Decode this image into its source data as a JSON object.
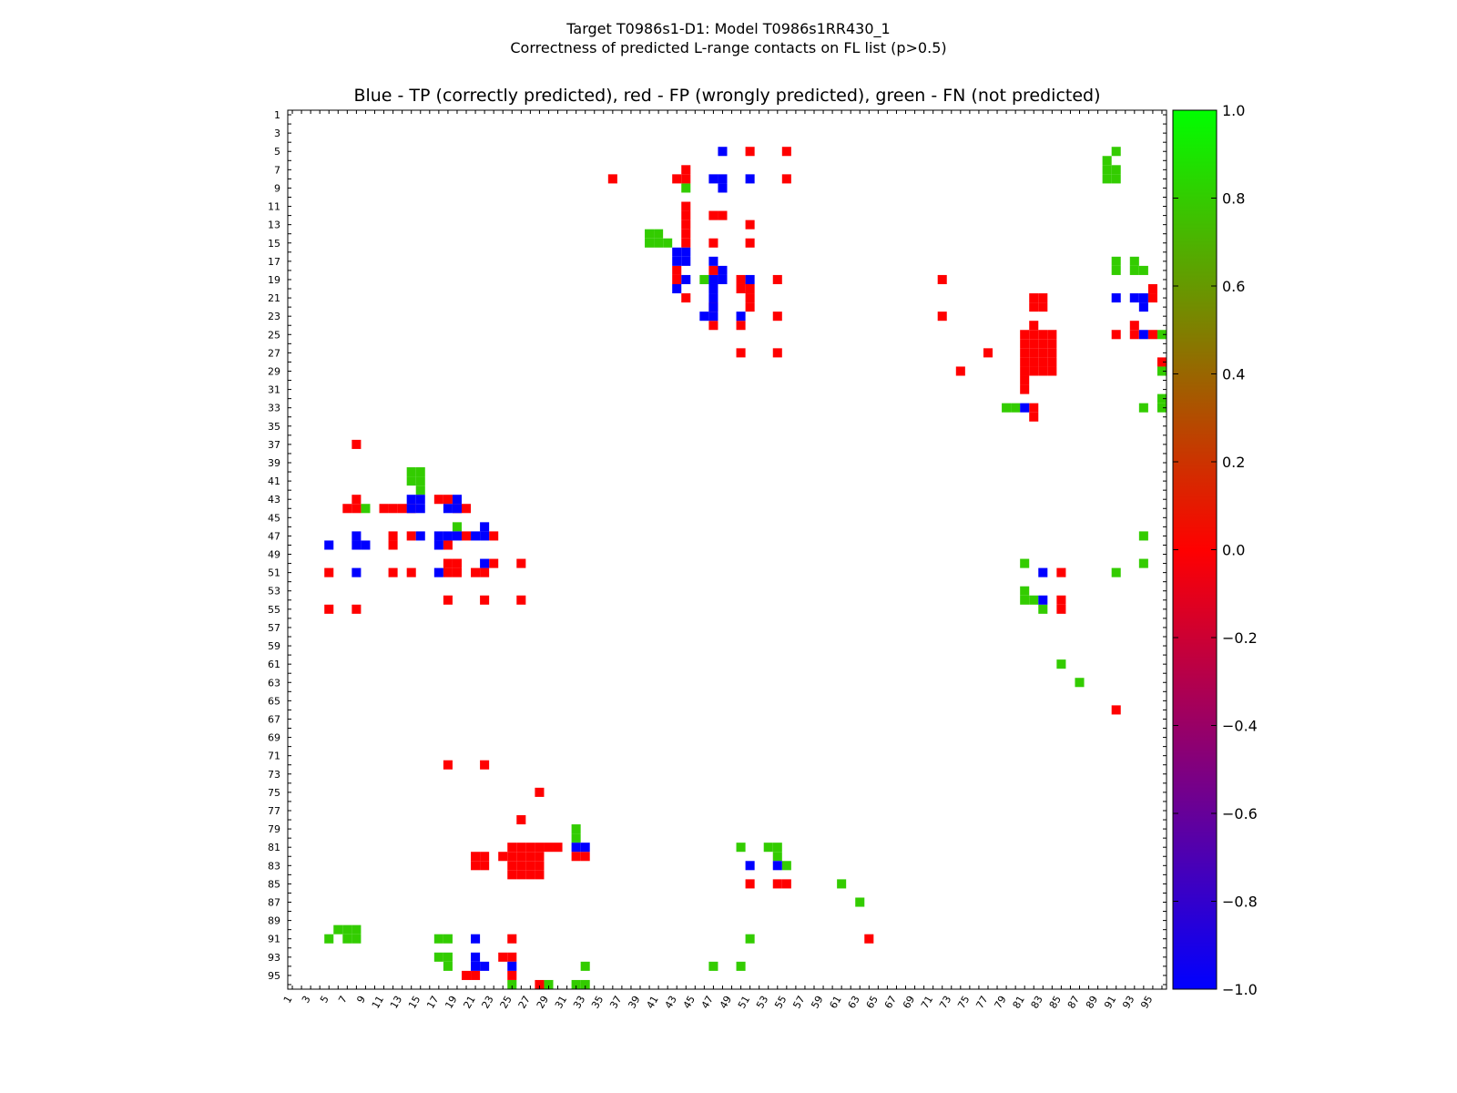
{
  "figure": {
    "title_line1": "Target T0986s1-D1: Model T0986s1RR430_1",
    "title_line2": "Correctness of predicted L-range contacts on FL list (p>0.5)"
  },
  "chart_data": {
    "type": "heatmap",
    "title": "Blue - TP (correctly predicted), red - FP (wrongly predicted), green - FN (not predicted)",
    "n": 96,
    "x_ticks": [
      1,
      3,
      5,
      7,
      9,
      11,
      13,
      15,
      17,
      19,
      21,
      23,
      25,
      27,
      29,
      31,
      33,
      35,
      37,
      39,
      41,
      43,
      45,
      47,
      49,
      51,
      53,
      55,
      57,
      59,
      61,
      63,
      65,
      67,
      69,
      71,
      73,
      75,
      77,
      79,
      81,
      83,
      85,
      87,
      89,
      91,
      93,
      95
    ],
    "y_ticks": [
      1,
      3,
      5,
      7,
      9,
      11,
      13,
      15,
      17,
      19,
      21,
      23,
      25,
      27,
      29,
      31,
      33,
      35,
      37,
      39,
      41,
      43,
      45,
      47,
      49,
      51,
      53,
      55,
      57,
      59,
      61,
      63,
      65,
      67,
      69,
      71,
      73,
      75,
      77,
      79,
      81,
      83,
      85,
      87,
      89,
      91,
      93,
      95
    ],
    "colorbar": {
      "range": [
        -1.0,
        1.0
      ],
      "ticks": [
        "1.0",
        "0.8",
        "0.6",
        "0.4",
        "0.2",
        "0.0",
        "−0.2",
        "−0.4",
        "−0.6",
        "−0.8",
        "−1.0"
      ],
      "colors": [
        "#0000ff",
        "#ff0000",
        "#00ff00"
      ]
    },
    "legend": {
      "tp": "#0000ff",
      "fp": "#ff0000",
      "fn": "#33cc00"
    },
    "cells": {
      "tp": [
        [
          48,
          5
        ],
        [
          47,
          8
        ],
        [
          48,
          8
        ],
        [
          51,
          8
        ],
        [
          48,
          9
        ],
        [
          43,
          16
        ],
        [
          44,
          16
        ],
        [
          43,
          17
        ],
        [
          44,
          17
        ],
        [
          47,
          17
        ],
        [
          48,
          18
        ],
        [
          51,
          19
        ],
        [
          43,
          20
        ],
        [
          44,
          19
        ],
        [
          47,
          19
        ],
        [
          48,
          19
        ],
        [
          47,
          20
        ],
        [
          47,
          21
        ],
        [
          47,
          22
        ],
        [
          46,
          23
        ],
        [
          47,
          23
        ],
        [
          50,
          23
        ],
        [
          14,
          43
        ],
        [
          15,
          43
        ],
        [
          14,
          44
        ],
        [
          15,
          44
        ],
        [
          19,
          43
        ],
        [
          18,
          44
        ],
        [
          19,
          44
        ],
        [
          8,
          47
        ],
        [
          15,
          47
        ],
        [
          17,
          47
        ],
        [
          18,
          47
        ],
        [
          19,
          47
        ],
        [
          21,
          47
        ],
        [
          22,
          47
        ],
        [
          22,
          46
        ],
        [
          5,
          48
        ],
        [
          8,
          48
        ],
        [
          9,
          48
        ],
        [
          17,
          48
        ],
        [
          22,
          50
        ],
        [
          8,
          51
        ],
        [
          17,
          51
        ],
        [
          81,
          33
        ],
        [
          91,
          21
        ],
        [
          93,
          21
        ],
        [
          94,
          21
        ],
        [
          94,
          22
        ],
        [
          94,
          25
        ],
        [
          83,
          51
        ],
        [
          83,
          54
        ],
        [
          32,
          81
        ],
        [
          33,
          81
        ],
        [
          51,
          83
        ],
        [
          54,
          83
        ],
        [
          21,
          91
        ],
        [
          21,
          93
        ],
        [
          21,
          94
        ],
        [
          22,
          94
        ],
        [
          25,
          94
        ]
      ],
      "fp": [
        [
          51,
          5
        ],
        [
          55,
          5
        ],
        [
          36,
          8
        ],
        [
          43,
          8
        ],
        [
          44,
          8
        ],
        [
          44,
          7
        ],
        [
          55,
          8
        ],
        [
          44,
          11
        ],
        [
          44,
          12
        ],
        [
          44,
          13
        ],
        [
          44,
          14
        ],
        [
          44,
          15
        ],
        [
          47,
          12
        ],
        [
          48,
          12
        ],
        [
          51,
          13
        ],
        [
          47,
          15
        ],
        [
          51,
          15
        ],
        [
          47,
          18
        ],
        [
          43,
          18
        ],
        [
          43,
          19
        ],
        [
          47,
          22
        ],
        [
          50,
          19
        ],
        [
          50,
          20
        ],
        [
          51,
          20
        ],
        [
          54,
          19
        ],
        [
          44,
          21
        ],
        [
          51,
          21
        ],
        [
          51,
          22
        ],
        [
          54,
          23
        ],
        [
          47,
          24
        ],
        [
          50,
          24
        ],
        [
          50,
          27
        ],
        [
          54,
          27
        ],
        [
          72,
          19
        ],
        [
          72,
          23
        ],
        [
          77,
          27
        ],
        [
          74,
          29
        ],
        [
          82,
          21
        ],
        [
          83,
          21
        ],
        [
          82,
          22
        ],
        [
          83,
          22
        ],
        [
          82,
          24
        ],
        [
          81,
          25
        ],
        [
          82,
          25
        ],
        [
          83,
          25
        ],
        [
          84,
          25
        ],
        [
          81,
          26
        ],
        [
          82,
          26
        ],
        [
          83,
          26
        ],
        [
          84,
          26
        ],
        [
          81,
          27
        ],
        [
          82,
          27
        ],
        [
          83,
          27
        ],
        [
          84,
          27
        ],
        [
          81,
          28
        ],
        [
          82,
          28
        ],
        [
          83,
          28
        ],
        [
          84,
          28
        ],
        [
          81,
          29
        ],
        [
          82,
          29
        ],
        [
          83,
          29
        ],
        [
          84,
          29
        ],
        [
          81,
          30
        ],
        [
          81,
          31
        ],
        [
          82,
          33
        ],
        [
          82,
          34
        ],
        [
          91,
          25
        ],
        [
          93,
          24
        ],
        [
          93,
          25
        ],
        [
          95,
          25
        ],
        [
          95,
          20
        ],
        [
          95,
          21
        ],
        [
          96,
          28
        ],
        [
          91,
          66
        ],
        [
          8,
          37
        ],
        [
          7,
          44
        ],
        [
          8,
          44
        ],
        [
          8,
          43
        ],
        [
          11,
          44
        ],
        [
          12,
          44
        ],
        [
          13,
          44
        ],
        [
          14,
          44
        ],
        [
          17,
          43
        ],
        [
          18,
          43
        ],
        [
          19,
          44
        ],
        [
          20,
          44
        ],
        [
          12,
          47
        ],
        [
          12,
          48
        ],
        [
          14,
          47
        ],
        [
          20,
          47
        ],
        [
          23,
          47
        ],
        [
          18,
          48
        ],
        [
          5,
          51
        ],
        [
          12,
          51
        ],
        [
          14,
          51
        ],
        [
          18,
          50
        ],
        [
          19,
          50
        ],
        [
          18,
          51
        ],
        [
          19,
          51
        ],
        [
          21,
          51
        ],
        [
          22,
          51
        ],
        [
          23,
          50
        ],
        [
          26,
          50
        ],
        [
          18,
          54
        ],
        [
          22,
          54
        ],
        [
          26,
          54
        ],
        [
          5,
          55
        ],
        [
          8,
          55
        ],
        [
          85,
          51
        ],
        [
          85,
          54
        ],
        [
          85,
          55
        ],
        [
          18,
          72
        ],
        [
          22,
          72
        ],
        [
          28,
          75
        ],
        [
          26,
          78
        ],
        [
          25,
          81
        ],
        [
          26,
          81
        ],
        [
          27,
          81
        ],
        [
          28,
          81
        ],
        [
          29,
          81
        ],
        [
          30,
          81
        ],
        [
          21,
          82
        ],
        [
          22,
          82
        ],
        [
          24,
          82
        ],
        [
          25,
          82
        ],
        [
          26,
          82
        ],
        [
          27,
          82
        ],
        [
          28,
          82
        ],
        [
          21,
          83
        ],
        [
          22,
          83
        ],
        [
          25,
          83
        ],
        [
          26,
          83
        ],
        [
          27,
          83
        ],
        [
          28,
          83
        ],
        [
          25,
          84
        ],
        [
          26,
          84
        ],
        [
          27,
          84
        ],
        [
          28,
          84
        ],
        [
          32,
          82
        ],
        [
          33,
          82
        ],
        [
          51,
          85
        ],
        [
          54,
          85
        ],
        [
          55,
          85
        ],
        [
          64,
          91
        ],
        [
          25,
          91
        ],
        [
          24,
          93
        ],
        [
          25,
          93
        ],
        [
          20,
          95
        ],
        [
          21,
          95
        ],
        [
          25,
          95
        ],
        [
          28,
          96
        ]
      ],
      "fn": [
        [
          91,
          5
        ],
        [
          90,
          6
        ],
        [
          90,
          7
        ],
        [
          91,
          7
        ],
        [
          90,
          8
        ],
        [
          91,
          8
        ],
        [
          44,
          9
        ],
        [
          40,
          14
        ],
        [
          41,
          14
        ],
        [
          40,
          15
        ],
        [
          41,
          15
        ],
        [
          42,
          15
        ],
        [
          46,
          19
        ],
        [
          91,
          17
        ],
        [
          91,
          18
        ],
        [
          93,
          17
        ],
        [
          93,
          18
        ],
        [
          94,
          18
        ],
        [
          96,
          25
        ],
        [
          96,
          29
        ],
        [
          79,
          33
        ],
        [
          80,
          33
        ],
        [
          96,
          32
        ],
        [
          96,
          33
        ],
        [
          94,
          33
        ],
        [
          14,
          40
        ],
        [
          15,
          40
        ],
        [
          14,
          41
        ],
        [
          15,
          41
        ],
        [
          15,
          42
        ],
        [
          9,
          44
        ],
        [
          19,
          46
        ],
        [
          94,
          47
        ],
        [
          81,
          50
        ],
        [
          94,
          50
        ],
        [
          91,
          51
        ],
        [
          81,
          53
        ],
        [
          81,
          54
        ],
        [
          82,
          54
        ],
        [
          83,
          55
        ],
        [
          85,
          61
        ],
        [
          87,
          63
        ],
        [
          32,
          79
        ],
        [
          32,
          80
        ],
        [
          50,
          81
        ],
        [
          53,
          81
        ],
        [
          54,
          81
        ],
        [
          54,
          82
        ],
        [
          55,
          83
        ],
        [
          61,
          85
        ],
        [
          63,
          87
        ],
        [
          6,
          90
        ],
        [
          7,
          90
        ],
        [
          8,
          90
        ],
        [
          5,
          91
        ],
        [
          7,
          91
        ],
        [
          8,
          91
        ],
        [
          17,
          91
        ],
        [
          18,
          91
        ],
        [
          51,
          91
        ],
        [
          17,
          93
        ],
        [
          18,
          93
        ],
        [
          18,
          94
        ],
        [
          33,
          94
        ],
        [
          47,
          94
        ],
        [
          50,
          94
        ],
        [
          25,
          96
        ],
        [
          29,
          96
        ],
        [
          32,
          96
        ],
        [
          33,
          96
        ]
      ]
    }
  }
}
